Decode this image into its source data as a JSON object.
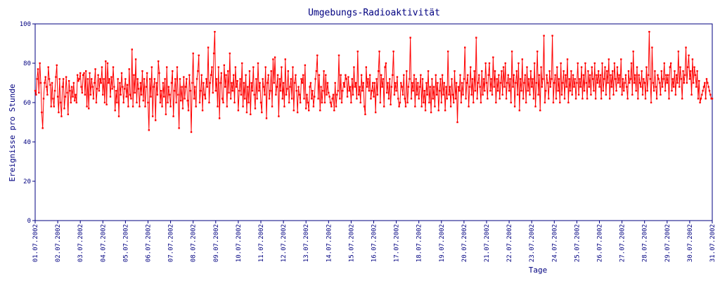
{
  "chart_data": {
    "type": "line",
    "title": "Umgebungs-Radioaktivität",
    "xlabel": "Tage",
    "ylabel": "Ereignisse pro Stunde",
    "color": "#ff0000",
    "ylim": [
      0,
      100
    ],
    "yticks": [
      0,
      20,
      40,
      60,
      80,
      100
    ],
    "xlim": [
      0,
      720
    ],
    "xticks": [
      {
        "value": 0,
        "label": "01.07.2002"
      },
      {
        "value": 24,
        "label": "02.07.2002"
      },
      {
        "value": 48,
        "label": "03.07.2002"
      },
      {
        "value": 72,
        "label": "04.07.2002"
      },
      {
        "value": 96,
        "label": "05.07.2002"
      },
      {
        "value": 120,
        "label": "06.07.2002"
      },
      {
        "value": 144,
        "label": "07.07.2002"
      },
      {
        "value": 168,
        "label": "08.07.2002"
      },
      {
        "value": 192,
        "label": "09.07.2002"
      },
      {
        "value": 216,
        "label": "10.07.2002"
      },
      {
        "value": 240,
        "label": "11.07.2002"
      },
      {
        "value": 264,
        "label": "12.07.2002"
      },
      {
        "value": 288,
        "label": "13.07.2002"
      },
      {
        "value": 312,
        "label": "14.07.2002"
      },
      {
        "value": 336,
        "label": "15.07.2002"
      },
      {
        "value": 360,
        "label": "16.07.2002"
      },
      {
        "value": 384,
        "label": "17.07.2002"
      },
      {
        "value": 408,
        "label": "18.07.2002"
      },
      {
        "value": 432,
        "label": "19.07.2002"
      },
      {
        "value": 456,
        "label": "20.07.2002"
      },
      {
        "value": 480,
        "label": "21.07.2002"
      },
      {
        "value": 504,
        "label": "22.07.2002"
      },
      {
        "value": 528,
        "label": "23.07.2002"
      },
      {
        "value": 552,
        "label": "24.07.2002"
      },
      {
        "value": 576,
        "label": "25.07.2002"
      },
      {
        "value": 600,
        "label": "26.07.2002"
      },
      {
        "value": 624,
        "label": "27.07.2002"
      },
      {
        "value": 648,
        "label": "28.07.2002"
      },
      {
        "value": 672,
        "label": "29.07.2002"
      },
      {
        "value": 696,
        "label": "30.07.2002"
      },
      {
        "value": 720,
        "label": "31.07.2002"
      }
    ],
    "values": [
      66,
      64,
      72,
      77,
      65,
      80,
      70,
      55,
      47,
      62,
      70,
      73,
      68,
      64,
      78,
      72,
      69,
      58,
      70,
      62,
      58,
      66,
      73,
      79,
      63,
      55,
      72,
      60,
      53,
      68,
      72,
      57,
      63,
      73,
      65,
      54,
      71,
      66,
      60,
      68,
      63,
      70,
      61,
      64,
      60,
      74,
      71,
      72,
      75,
      68,
      65,
      74,
      75,
      64,
      76,
      58,
      72,
      57,
      75,
      64,
      72,
      68,
      62,
      70,
      77,
      60,
      67,
      74,
      66,
      72,
      70,
      78,
      64,
      72,
      60,
      81,
      59,
      80,
      70,
      72,
      63,
      73,
      67,
      78,
      68,
      56,
      66,
      60,
      72,
      53,
      70,
      64,
      75,
      68,
      60,
      67,
      72,
      63,
      69,
      58,
      77,
      64,
      62,
      87,
      58,
      74,
      65,
      82,
      60,
      72,
      67,
      58,
      70,
      64,
      76,
      61,
      72,
      58,
      68,
      75,
      60,
      46,
      72,
      63,
      78,
      53,
      68,
      72,
      51,
      70,
      64,
      81,
      75,
      60,
      66,
      58,
      70,
      63,
      72,
      54,
      78,
      60,
      68,
      64,
      58,
      70,
      76,
      53,
      66,
      72,
      60,
      78,
      64,
      47,
      72,
      61,
      68,
      57,
      73,
      62,
      68,
      72,
      61,
      56,
      74,
      66,
      45,
      70,
      85,
      62,
      68,
      58,
      72,
      76,
      84,
      60,
      66,
      74,
      56,
      70,
      64,
      62,
      72,
      68,
      88,
      60,
      70,
      74,
      78,
      65,
      85,
      96,
      66,
      72,
      58,
      78,
      52,
      70,
      75,
      62,
      60,
      79,
      68,
      74,
      58,
      76,
      65,
      85,
      62,
      70,
      66,
      74,
      60,
      78,
      68,
      71,
      56,
      66,
      72,
      64,
      80,
      58,
      70,
      62,
      74,
      55,
      68,
      60,
      76,
      54,
      70,
      66,
      78,
      64,
      57,
      72,
      62,
      80,
      66,
      70,
      60,
      55,
      72,
      68,
      64,
      78,
      52,
      70,
      74,
      62,
      66,
      76,
      58,
      82,
      70,
      83,
      64,
      68,
      74,
      53,
      72,
      66,
      78,
      62,
      70,
      58,
      82,
      64,
      67,
      76,
      60,
      68,
      72,
      62,
      78,
      56,
      70,
      74,
      66,
      55,
      68,
      64,
      60,
      72,
      70,
      74,
      62,
      79,
      57,
      64,
      60,
      56,
      68,
      70,
      62,
      66,
      58,
      63,
      72,
      76,
      84,
      62,
      74,
      56,
      68,
      60,
      66,
      76,
      60,
      74,
      64,
      70,
      65,
      63,
      60,
      58,
      62,
      64,
      56,
      70,
      58,
      64,
      66,
      84,
      62,
      74,
      60,
      66,
      70,
      68,
      74,
      72,
      63,
      73,
      66,
      68,
      60,
      72,
      64,
      78,
      68,
      70,
      62,
      86,
      64,
      68,
      60,
      74,
      66,
      70,
      58,
      54,
      78,
      68,
      72,
      66,
      74,
      62,
      66,
      70,
      63,
      70,
      55,
      72,
      64,
      76,
      86,
      60,
      74,
      68,
      72,
      58,
      78,
      80,
      65,
      70,
      62,
      72,
      59,
      68,
      74,
      86,
      64,
      70,
      66,
      73,
      62,
      58,
      60,
      70,
      68,
      64,
      74,
      62,
      58,
      76,
      60,
      68,
      72,
      93,
      62,
      70,
      66,
      74,
      58,
      72,
      64,
      70,
      62,
      68,
      74,
      58,
      72,
      60,
      66,
      56,
      70,
      64,
      76,
      60,
      68,
      55,
      72,
      62,
      68,
      58,
      74,
      64,
      70,
      56,
      66,
      72,
      60,
      74,
      64,
      70,
      56,
      68,
      62,
      86,
      64,
      68,
      58,
      72,
      64,
      60,
      76,
      62,
      70,
      50,
      68,
      66,
      74,
      60,
      70,
      64,
      72,
      88,
      62,
      70,
      74,
      58,
      68,
      78,
      64,
      72,
      60,
      76,
      66,
      93,
      62,
      70,
      74,
      68,
      60,
      76,
      64,
      72,
      66,
      80,
      70,
      62,
      74,
      80,
      66,
      72,
      64,
      83,
      68,
      76,
      60,
      72,
      66,
      74,
      62,
      70,
      76,
      64,
      78,
      68,
      80,
      62,
      70,
      74,
      66,
      72,
      60,
      86,
      68,
      74,
      58,
      70,
      76,
      64,
      80,
      56,
      72,
      66,
      82,
      62,
      70,
      74,
      60,
      78,
      66,
      72,
      64,
      76,
      68,
      72,
      62,
      80,
      58,
      70,
      86,
      64,
      74,
      56,
      78,
      68,
      72,
      94,
      60,
      66,
      74,
      70,
      62,
      76,
      68,
      72,
      94,
      60,
      70,
      74,
      62,
      78,
      66,
      72,
      60,
      80,
      64,
      70,
      76,
      62,
      74,
      68,
      82,
      60,
      72,
      66,
      76,
      64,
      74,
      68,
      72,
      62,
      70,
      80,
      64,
      72,
      68,
      78,
      62,
      74,
      66,
      80,
      70,
      62,
      76,
      68,
      74,
      64,
      78,
      72,
      66,
      80,
      62,
      74,
      70,
      76,
      68,
      74,
      62,
      80,
      66,
      72,
      78,
      64,
      76,
      70,
      82,
      62,
      74,
      68,
      76,
      64,
      80,
      72,
      66,
      78,
      70,
      74,
      68,
      82,
      64,
      72,
      66,
      70,
      74,
      68,
      62,
      76,
      70,
      72,
      80,
      64,
      86,
      70,
      74,
      66,
      78,
      62,
      74,
      70,
      68,
      76,
      64,
      72,
      70,
      62,
      78,
      66,
      74,
      96,
      72,
      60,
      88,
      70,
      66,
      76,
      68,
      62,
      74,
      72,
      70,
      64,
      76,
      68,
      72,
      80,
      66,
      74,
      70,
      74,
      62,
      78,
      80,
      66,
      72,
      68,
      76,
      64,
      74,
      70,
      86,
      68,
      78,
      72,
      62,
      76,
      70,
      74,
      88,
      70,
      78,
      84,
      72,
      76,
      64,
      82,
      70,
      78,
      74,
      68,
      76,
      62,
      71,
      60,
      62,
      64,
      66,
      68,
      70,
      62,
      72,
      70,
      68,
      66,
      64,
      62,
      62
    ]
  }
}
